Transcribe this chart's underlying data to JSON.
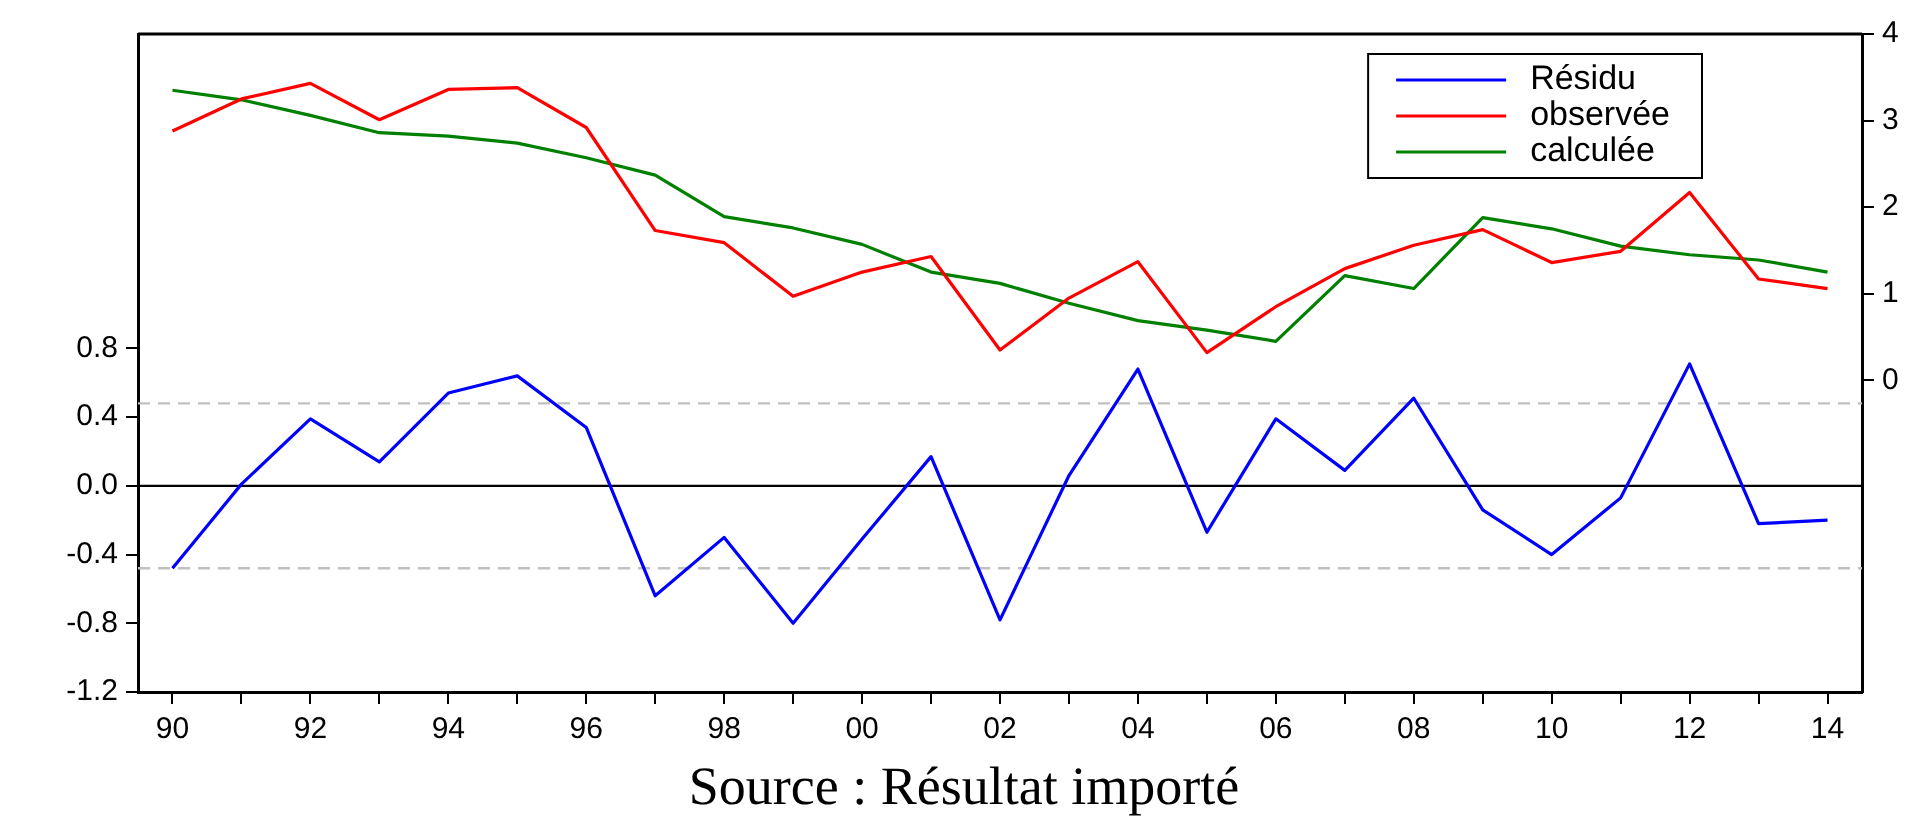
{
  "chart_data": {
    "type": "line",
    "x": [
      1990,
      1991,
      1992,
      1993,
      1994,
      1995,
      1996,
      1997,
      1998,
      1999,
      2000,
      2001,
      2002,
      2003,
      2004,
      2005,
      2006,
      2007,
      2008,
      2009,
      2010,
      2011,
      2012,
      2013,
      2014
    ],
    "series": [
      {
        "name": "Résidu",
        "color": "#0000ff",
        "values": [
          -0.48,
          0.01,
          0.39,
          0.14,
          0.54,
          0.64,
          0.34,
          -0.64,
          -0.3,
          -0.8,
          -0.31,
          0.17,
          -0.78,
          0.06,
          0.68,
          -0.27,
          0.39,
          0.09,
          0.51,
          -0.14,
          -0.4,
          -0.07,
          0.71,
          -0.22,
          -0.2
        ]
      },
      {
        "name": "observée",
        "color": "#ff0000",
        "axis": "y2",
        "values": [
          2.88,
          3.25,
          3.43,
          3.01,
          3.36,
          3.38,
          2.92,
          1.73,
          1.59,
          0.97,
          1.25,
          1.43,
          0.35,
          0.95,
          1.37,
          0.32,
          0.85,
          1.29,
          1.56,
          1.74,
          1.36,
          1.49,
          2.17,
          1.17,
          1.06
        ]
      },
      {
        "name": "calculée",
        "color": "#008000",
        "axis": "y2",
        "values": [
          3.35,
          3.24,
          3.06,
          2.86,
          2.82,
          2.74,
          2.57,
          2.37,
          1.89,
          1.76,
          1.57,
          1.25,
          1.12,
          0.89,
          0.69,
          0.58,
          0.45,
          1.21,
          1.06,
          1.88,
          1.75,
          1.55,
          1.45,
          1.39,
          1.25
        ]
      }
    ],
    "xlim": [
      1989.5,
      2014.5
    ],
    "xticks": [
      {
        "value": 1990,
        "label": "90"
      },
      {
        "value": 1991,
        "label": null
      },
      {
        "value": 1992,
        "label": "92"
      },
      {
        "value": 1993,
        "label": null
      },
      {
        "value": 1994,
        "label": "94"
      },
      {
        "value": 1995,
        "label": null
      },
      {
        "value": 1996,
        "label": "96"
      },
      {
        "value": 1997,
        "label": null
      },
      {
        "value": 1998,
        "label": "98"
      },
      {
        "value": 1999,
        "label": null
      },
      {
        "value": 2000,
        "label": "00"
      },
      {
        "value": 2001,
        "label": null
      },
      {
        "value": 2002,
        "label": "02"
      },
      {
        "value": 2003,
        "label": null
      },
      {
        "value": 2004,
        "label": "04"
      },
      {
        "value": 2005,
        "label": null
      },
      {
        "value": 2006,
        "label": "06"
      },
      {
        "value": 2007,
        "label": null
      },
      {
        "value": 2008,
        "label": "08"
      },
      {
        "value": 2009,
        "label": null
      },
      {
        "value": 2010,
        "label": "10"
      },
      {
        "value": 2011,
        "label": null
      },
      {
        "value": 2012,
        "label": "12"
      },
      {
        "value": 2013,
        "label": null
      },
      {
        "value": 2014,
        "label": "14"
      }
    ],
    "ylim": [
      -1.2,
      2.63
    ],
    "yticks": [
      {
        "value": -1.2,
        "label": "-1.2"
      },
      {
        "value": -0.8,
        "label": "-0.8"
      },
      {
        "value": -0.4,
        "label": "-0.4"
      },
      {
        "value": 0,
        "label": "0.0"
      },
      {
        "value": 0.4,
        "label": "0.4"
      },
      {
        "value": 0.8,
        "label": "0.8"
      }
    ],
    "y2lim": [
      -3.6,
      4
    ],
    "y2ticks": [
      0,
      1,
      2,
      3,
      4
    ],
    "ref_lines": [
      {
        "axis": "y",
        "value": 0,
        "label": null,
        "color": "#000000",
        "line_style": "solid"
      },
      {
        "axis": "y",
        "value": 0.48,
        "label": null,
        "color": "#c0c0c0",
        "line_style": "dashed"
      },
      {
        "axis": "y",
        "value": -0.48,
        "label": null,
        "color": "#c0c0c0",
        "line_style": "dashed"
      }
    ],
    "grid": false,
    "legend": "top right",
    "marker": "none",
    "line_style": "solid",
    "annotations": [
      "Source : Résultat importé"
    ]
  }
}
